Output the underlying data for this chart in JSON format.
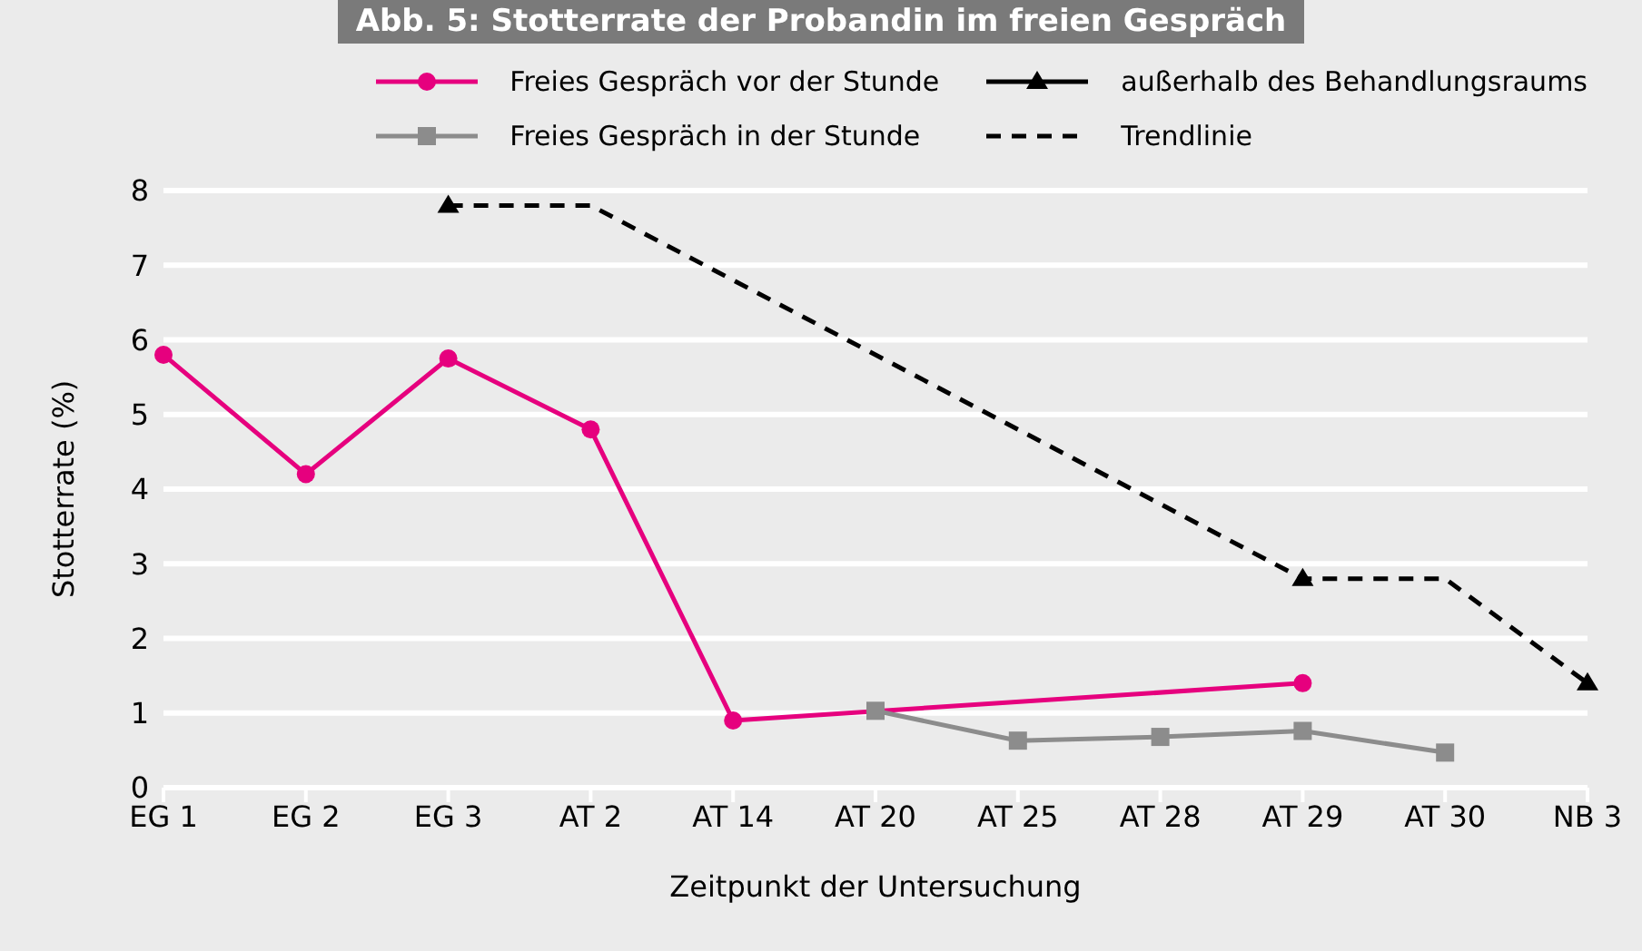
{
  "chart_data": {
    "type": "line",
    "title": "Abb. 5: Stotterrate der Probandin im freien Gespräch",
    "xlabel": "Zeitpunkt der Untersuchung",
    "ylabel": "Stotterrate (%)",
    "categories": [
      "EG 1",
      "EG 2",
      "EG 3",
      "AT 2",
      "AT 14",
      "AT 20",
      "AT 25",
      "AT 28",
      "AT 29",
      "AT 30",
      "NB 3"
    ],
    "series": [
      {
        "name": "Freies Gespräch vor der Stunde",
        "color": "#e6007e",
        "marker": "circle",
        "values": [
          5.8,
          4.2,
          5.75,
          4.8,
          0.9,
          null,
          null,
          null,
          1.4,
          null,
          null
        ]
      },
      {
        "name": "außerhalb des Behandlungsraums",
        "type": "scatter",
        "color": "#000000",
        "marker": "triangle",
        "values": [
          null,
          null,
          7.8,
          null,
          null,
          null,
          null,
          null,
          2.8,
          null,
          1.4
        ]
      },
      {
        "name": "Freies Gespräch in der Stunde",
        "color": "#8c8c8c",
        "marker": "square",
        "values": [
          null,
          null,
          null,
          null,
          null,
          1.03,
          0.63,
          0.68,
          0.76,
          0.47,
          null
        ]
      },
      {
        "name": "Trendlinie",
        "color": "#000000",
        "marker": "none",
        "line_style": "dashed",
        "values": [
          null,
          null,
          7.8,
          7.8,
          null,
          null,
          null,
          null,
          2.8,
          2.8,
          1.4
        ]
      }
    ],
    "ylim": [
      0,
      8
    ],
    "yticks": [
      0,
      1,
      2,
      3,
      4,
      5,
      6,
      7,
      8
    ],
    "grid": "y",
    "legend": "top right"
  }
}
